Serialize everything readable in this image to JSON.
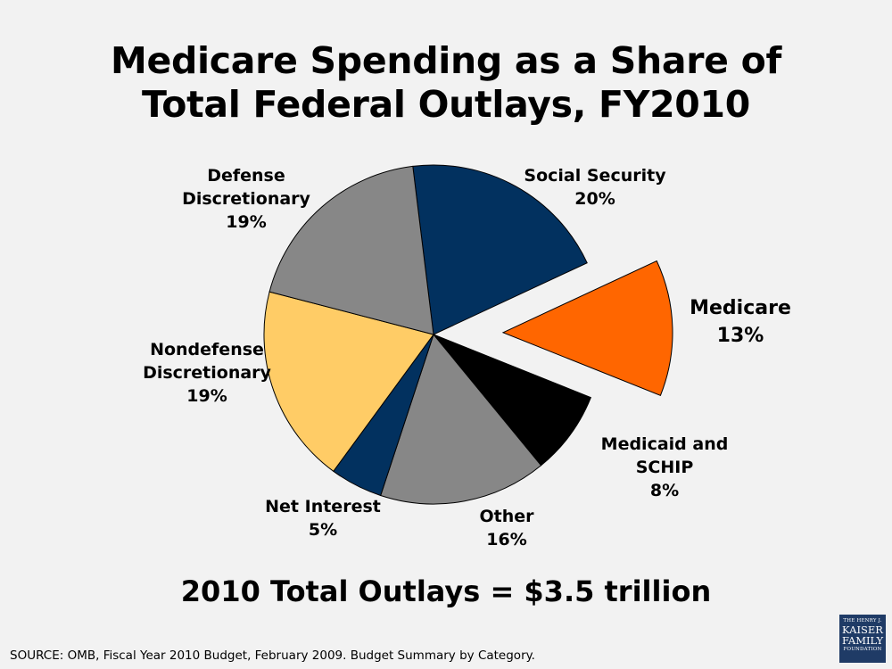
{
  "title_lines": [
    "Medicare Spending as a Share of",
    "Total Federal Outlays, FY2010"
  ],
  "colors": {
    "background": "#f2f2f2",
    "navy": "#02315f",
    "gray": "#878787",
    "yellow": "#ffcc66",
    "orange": "#ff6600",
    "black": "#000000",
    "logo": "#1f3b66"
  },
  "chart_data": {
    "type": "pie",
    "title": "Medicare Spending as a Share of Total Federal Outlays, FY2010",
    "slices": [
      {
        "label": "Social Security",
        "value": 20,
        "value_text": "20%",
        "color": "#02315f",
        "exploded": false
      },
      {
        "label": "Medicare",
        "value": 13,
        "value_text": "13%",
        "color": "#ff6600",
        "exploded": true
      },
      {
        "label": "Medicaid and SCHIP",
        "value": 8,
        "value_text": "8%",
        "color": "#000000",
        "exploded": false
      },
      {
        "label": "Other",
        "value": 16,
        "value_text": "16%",
        "color": "#878787",
        "exploded": false
      },
      {
        "label": "Net Interest",
        "value": 5,
        "value_text": "5%",
        "color": "#02315f",
        "exploded": false
      },
      {
        "label": "Nondefense Discretionary",
        "value": 19,
        "value_text": "19%",
        "color": "#ffcc66",
        "exploded": false
      },
      {
        "label": "Defense Discretionary",
        "value": 19,
        "value_text": "19%",
        "color": "#878787",
        "exploded": false
      }
    ],
    "annotation": "2010 Total Outlays = $3.5 trillion"
  },
  "label_lines": {
    "social_security": [
      "Social Security",
      "20%"
    ],
    "medicare": [
      "Medicare",
      "13%"
    ],
    "medicaid": [
      "Medicaid and",
      "SCHIP",
      "8%"
    ],
    "other": [
      "Other",
      "16%"
    ],
    "net_interest": [
      "Net Interest",
      "5%"
    ],
    "nondefense": [
      "Nondefense",
      "Discretionary",
      "19%"
    ],
    "defense": [
      "Defense",
      "Discretionary",
      "19%"
    ]
  },
  "total_text": "2010 Total Outlays = $3.5 trillion",
  "source_text": "SOURCE: OMB, Fiscal Year 2010 Budget, February 2009.  Budget Summary by Category.",
  "logo_lines": [
    "THE HENRY J.",
    "KAISER",
    "FAMILY",
    "FOUNDATION"
  ]
}
